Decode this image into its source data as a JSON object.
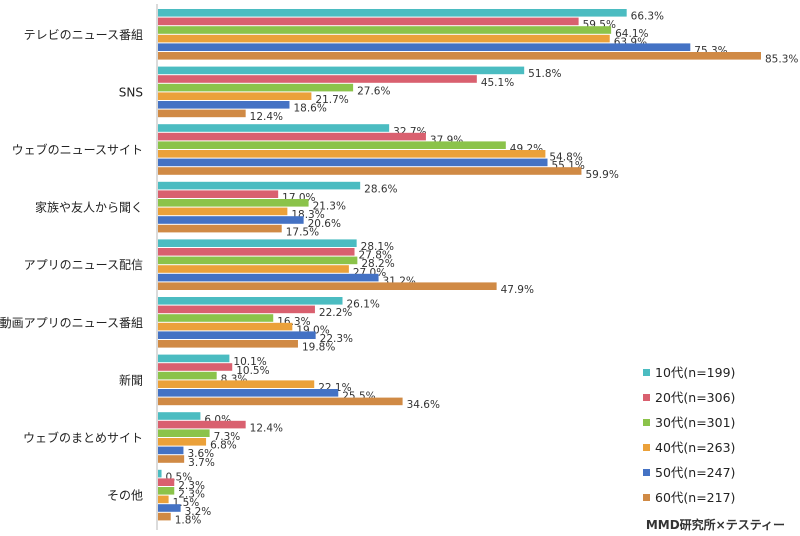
{
  "chart_data": {
    "type": "bar",
    "orientation": "horizontal",
    "categories": [
      "テレビのニュース番組",
      "SNS",
      "ウェブのニュースサイト",
      "家族や友人から聞く",
      "アプリのニュース配信",
      "動画アプリのニュース番組",
      "新聞",
      "ウェブのまとめサイト",
      "その他"
    ],
    "series": [
      {
        "name": "10代(n=199)",
        "color": "#4BBCC1",
        "values": [
          66.3,
          51.8,
          32.7,
          28.6,
          28.1,
          26.1,
          10.1,
          6.0,
          0.5
        ]
      },
      {
        "name": "20代(n=306)",
        "color": "#D9606F",
        "values": [
          59.5,
          45.1,
          37.9,
          17.0,
          27.8,
          22.2,
          10.5,
          12.4,
          2.3
        ]
      },
      {
        "name": "30代(n=301)",
        "color": "#8BC34A",
        "values": [
          64.1,
          27.6,
          49.2,
          21.3,
          28.2,
          16.3,
          8.3,
          7.3,
          2.3
        ]
      },
      {
        "name": "40代(n=263)",
        "color": "#EBA13A",
        "values": [
          63.9,
          21.7,
          54.8,
          18.3,
          27.0,
          19.0,
          22.1,
          6.8,
          1.5
        ]
      },
      {
        "name": "50代(n=247)",
        "color": "#4472C4",
        "values": [
          75.3,
          18.6,
          55.1,
          20.6,
          31.2,
          22.3,
          25.5,
          3.6,
          3.2
        ]
      },
      {
        "name": "60代(n=217)",
        "color": "#D08A45",
        "values": [
          85.3,
          12.4,
          59.9,
          17.5,
          47.9,
          19.8,
          34.6,
          3.7,
          1.8
        ]
      }
    ],
    "value_suffix": "%",
    "legend_position": "bottom-right",
    "xlim": [
      0,
      85.3
    ],
    "grid": false
  },
  "credit": "MMD研究所×テスティー"
}
